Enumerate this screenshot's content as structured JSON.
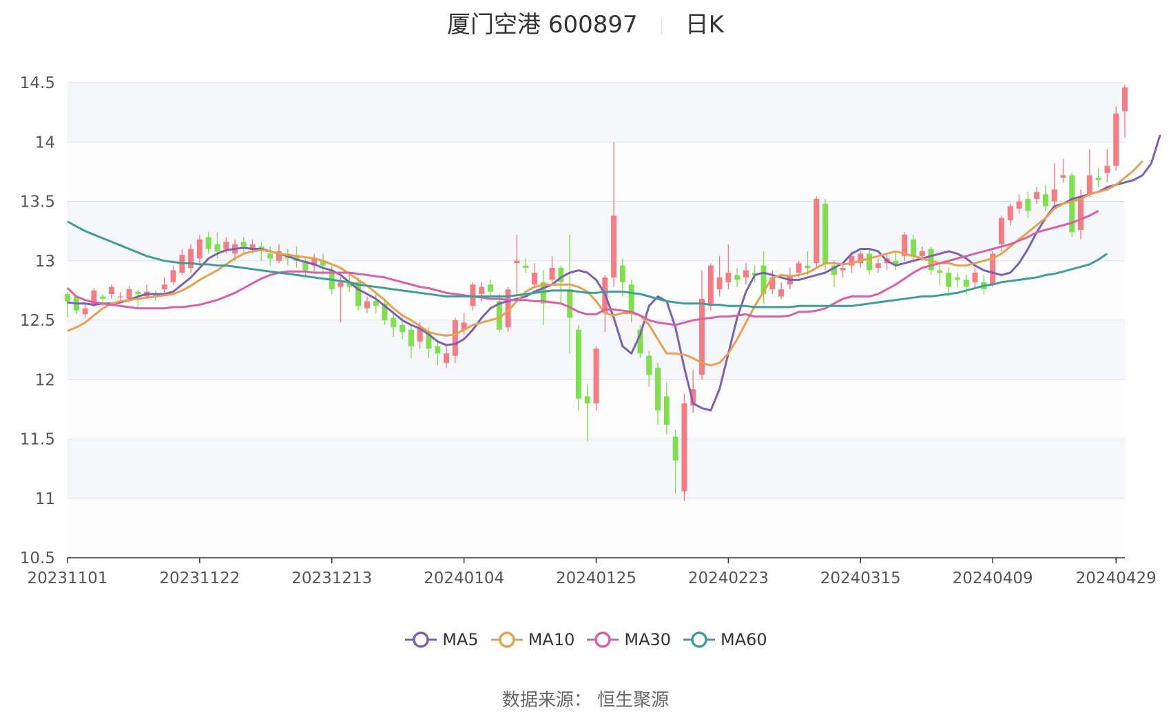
{
  "title": {
    "name": "厦门空港 600897",
    "period": "日K"
  },
  "source": "数据来源： 恒生聚源",
  "colors": {
    "up": "#f47c82",
    "down": "#7ee04c",
    "plot_bg": "#f6f7fb",
    "grid": "#dde1ee",
    "axis": "#333333"
  },
  "chart_data": {
    "type": "candlestick",
    "yticks": [
      "14.5",
      "14",
      "13.5",
      "13",
      "12.5",
      "12",
      "11.5",
      "11",
      "10.5"
    ],
    "ylim": [
      10.5,
      14.5
    ],
    "xtick_labels": [
      "20231101",
      "20231122",
      "20231213",
      "20240104",
      "20240125",
      "20240223",
      "20240315",
      "20240409",
      "20240429"
    ],
    "xtick_index": [
      0,
      15,
      30,
      45,
      60,
      75,
      90,
      105,
      119
    ],
    "candles": [
      [
        12.72,
        12.66,
        12.74,
        12.52
      ],
      [
        12.7,
        12.58,
        12.71,
        12.55
      ],
      [
        12.55,
        12.6,
        12.65,
        12.52
      ],
      [
        12.62,
        12.75,
        12.77,
        12.61
      ],
      [
        12.7,
        12.68,
        12.72,
        12.62
      ],
      [
        12.72,
        12.78,
        12.8,
        12.68
      ],
      [
        12.7,
        12.7,
        12.74,
        12.66
      ],
      [
        12.68,
        12.76,
        12.79,
        12.65
      ],
      [
        12.74,
        12.72,
        12.76,
        12.6
      ],
      [
        12.7,
        12.74,
        12.8,
        12.68
      ],
      [
        12.72,
        12.7,
        12.75,
        12.66
      ],
      [
        12.76,
        12.8,
        12.86,
        12.72
      ],
      [
        12.82,
        12.92,
        12.96,
        12.8
      ],
      [
        12.9,
        13.05,
        13.1,
        12.88
      ],
      [
        12.94,
        13.1,
        13.14,
        12.9
      ],
      [
        13.02,
        13.18,
        13.22,
        12.98
      ],
      [
        13.2,
        13.1,
        13.24,
        13.06
      ],
      [
        13.14,
        13.08,
        13.24,
        13.02
      ],
      [
        13.1,
        13.16,
        13.2,
        13.06
      ],
      [
        13.06,
        13.14,
        13.18,
        13.0
      ],
      [
        13.16,
        13.12,
        13.2,
        13.06
      ],
      [
        13.1,
        13.14,
        13.18,
        13.06
      ],
      [
        13.12,
        13.08,
        13.16,
        13.0
      ],
      [
        13.06,
        13.02,
        13.12,
        12.96
      ],
      [
        13.0,
        13.08,
        13.14,
        12.98
      ],
      [
        13.06,
        13.02,
        13.1,
        12.96
      ],
      [
        13.04,
        13.0,
        13.12,
        12.94
      ],
      [
        13.0,
        12.92,
        13.04,
        12.86
      ],
      [
        12.96,
        13.02,
        13.06,
        12.9
      ],
      [
        13.0,
        12.96,
        13.06,
        12.88
      ],
      [
        12.92,
        12.76,
        12.96,
        12.72
      ],
      [
        12.78,
        12.82,
        12.86,
        12.48
      ],
      [
        12.82,
        12.78,
        12.9,
        12.74
      ],
      [
        12.82,
        12.62,
        12.86,
        12.58
      ],
      [
        12.6,
        12.66,
        12.7,
        12.56
      ],
      [
        12.66,
        12.62,
        12.72,
        12.56
      ],
      [
        12.64,
        12.5,
        12.68,
        12.46
      ],
      [
        12.52,
        12.44,
        12.58,
        12.36
      ],
      [
        12.46,
        12.4,
        12.52,
        12.34
      ],
      [
        12.42,
        12.28,
        12.46,
        12.18
      ],
      [
        12.32,
        12.44,
        12.48,
        12.26
      ],
      [
        12.4,
        12.26,
        12.44,
        12.18
      ],
      [
        12.28,
        12.22,
        12.32,
        12.12
      ],
      [
        12.14,
        12.22,
        12.28,
        12.1
      ],
      [
        12.2,
        12.5,
        12.52,
        12.14
      ],
      [
        12.42,
        12.48,
        12.56,
        12.38
      ],
      [
        12.62,
        12.8,
        12.82,
        12.58
      ],
      [
        12.72,
        12.78,
        12.82,
        12.66
      ],
      [
        12.8,
        12.74,
        12.84,
        12.7
      ],
      [
        12.66,
        12.42,
        12.72,
        12.4
      ],
      [
        12.44,
        12.76,
        12.78,
        12.4
      ],
      [
        12.98,
        13.0,
        13.22,
        12.7
      ],
      [
        12.96,
        12.94,
        13.02,
        12.9
      ],
      [
        12.8,
        12.9,
        12.98,
        12.78
      ],
      [
        12.82,
        12.64,
        12.92,
        12.46
      ],
      [
        12.84,
        12.94,
        13.04,
        12.8
      ],
      [
        12.94,
        12.82,
        12.96,
        12.64
      ],
      [
        12.76,
        12.52,
        13.22,
        12.22
      ],
      [
        12.42,
        11.84,
        12.46,
        11.74
      ],
      [
        11.86,
        11.8,
        11.96,
        11.48
      ],
      [
        11.8,
        12.26,
        12.28,
        11.74
      ],
      [
        12.56,
        12.86,
        12.88,
        12.4
      ],
      [
        12.86,
        13.38,
        14.0,
        12.78
      ],
      [
        12.96,
        12.82,
        13.02,
        12.7
      ],
      [
        12.8,
        12.56,
        12.84,
        12.48
      ],
      [
        12.42,
        12.22,
        12.46,
        12.18
      ],
      [
        12.2,
        12.04,
        12.24,
        11.94
      ],
      [
        12.1,
        11.74,
        12.14,
        11.62
      ],
      [
        11.86,
        11.62,
        11.98,
        11.54
      ],
      [
        11.52,
        11.32,
        11.58,
        11.04
      ],
      [
        11.06,
        11.8,
        11.88,
        10.98
      ],
      [
        11.78,
        11.92,
        12.08,
        11.72
      ],
      [
        12.04,
        12.68,
        12.92,
        12.0
      ],
      [
        12.62,
        12.96,
        12.98,
        12.58
      ],
      [
        12.76,
        12.86,
        13.04,
        12.7
      ],
      [
        12.82,
        12.9,
        13.14,
        12.76
      ],
      [
        12.88,
        12.84,
        12.94,
        12.78
      ],
      [
        12.86,
        12.92,
        12.98,
        12.8
      ],
      [
        12.9,
        12.88,
        12.96,
        12.82
      ],
      [
        12.96,
        12.72,
        13.08,
        12.64
      ],
      [
        12.76,
        12.86,
        12.92,
        12.72
      ],
      [
        12.7,
        12.76,
        12.82,
        12.68
      ],
      [
        12.8,
        12.88,
        12.94,
        12.76
      ],
      [
        12.9,
        12.98,
        13.0,
        12.86
      ],
      [
        12.96,
        12.94,
        13.08,
        12.88
      ],
      [
        12.98,
        13.52,
        13.54,
        12.94
      ],
      [
        13.48,
        12.98,
        13.52,
        12.92
      ],
      [
        12.96,
        12.88,
        13.0,
        12.78
      ],
      [
        12.92,
        12.94,
        12.98,
        12.86
      ],
      [
        12.96,
        13.04,
        13.08,
        12.9
      ],
      [
        12.98,
        13.06,
        13.08,
        12.94
      ],
      [
        13.06,
        12.92,
        13.1,
        12.88
      ],
      [
        12.94,
        12.98,
        13.02,
        12.9
      ],
      [
        12.98,
        13.02,
        13.06,
        12.92
      ],
      [
        13.0,
        12.96,
        13.08,
        12.92
      ],
      [
        13.04,
        13.22,
        13.24,
        13.0
      ],
      [
        13.18,
        13.04,
        13.22,
        13.0
      ],
      [
        13.04,
        13.08,
        13.12,
        13.0
      ],
      [
        13.1,
        12.92,
        13.12,
        12.88
      ],
      [
        12.92,
        12.9,
        12.98,
        12.8
      ],
      [
        12.9,
        12.78,
        12.94,
        12.7
      ],
      [
        12.86,
        12.84,
        12.9,
        12.78
      ],
      [
        12.84,
        12.78,
        12.88,
        12.72
      ],
      [
        12.82,
        12.9,
        12.94,
        12.78
      ],
      [
        12.82,
        12.76,
        12.88,
        12.72
      ],
      [
        12.8,
        13.06,
        13.08,
        12.78
      ],
      [
        13.14,
        13.36,
        13.38,
        13.08
      ],
      [
        13.34,
        13.46,
        13.48,
        13.3
      ],
      [
        13.44,
        13.5,
        13.56,
        13.4
      ],
      [
        13.52,
        13.42,
        13.58,
        13.36
      ],
      [
        13.52,
        13.58,
        13.62,
        13.48
      ],
      [
        13.56,
        13.46,
        13.64,
        13.42
      ],
      [
        13.5,
        13.6,
        13.82,
        13.46
      ],
      [
        13.7,
        13.72,
        13.86,
        13.66
      ],
      [
        13.72,
        13.24,
        13.74,
        13.2
      ],
      [
        13.26,
        13.54,
        13.6,
        13.18
      ],
      [
        13.56,
        13.72,
        13.94,
        13.54
      ],
      [
        13.7,
        13.68,
        13.78,
        13.62
      ],
      [
        13.74,
        13.8,
        13.94,
        13.66
      ],
      [
        13.8,
        14.24,
        14.3,
        13.76
      ],
      [
        14.26,
        14.46,
        14.48,
        14.04
      ]
    ],
    "series": [
      {
        "name": "MA5",
        "color": "#7b60b5",
        "values": [
          12.65,
          12.64,
          12.64,
          12.63,
          12.64,
          12.64,
          12.65,
          12.67,
          12.7,
          12.72,
          12.72,
          12.72,
          12.74,
          12.8,
          12.86,
          12.94,
          13.02,
          13.06,
          13.09,
          13.1,
          13.11,
          13.1,
          13.1,
          13.08,
          13.06,
          13.04,
          13.01,
          12.99,
          12.97,
          12.94,
          12.92,
          12.88,
          12.82,
          12.76,
          12.72,
          12.68,
          12.62,
          12.56,
          12.5,
          12.46,
          12.43,
          12.38,
          12.32,
          12.29,
          12.3,
          12.34,
          12.42,
          12.52,
          12.6,
          12.64,
          12.66,
          12.68,
          12.7,
          12.74,
          12.77,
          12.8,
          12.86,
          12.9,
          12.92,
          12.9,
          12.84,
          12.72,
          12.52,
          12.28,
          12.22,
          12.38,
          12.62,
          12.7,
          12.66,
          12.44,
          12.1,
          11.8,
          11.76,
          11.74,
          11.92,
          12.22,
          12.52,
          12.74,
          12.88,
          12.9,
          12.88,
          12.86,
          12.84,
          12.84,
          12.86,
          12.88,
          12.9,
          12.94,
          12.98,
          13.06,
          13.1,
          13.1,
          13.08,
          13.0,
          12.96,
          12.98,
          13.0,
          13.02,
          13.04,
          13.06,
          13.08,
          13.06,
          13.02,
          12.96,
          12.92,
          12.9,
          12.88,
          12.9,
          12.98,
          13.1,
          13.24,
          13.36,
          13.46,
          13.48,
          13.52,
          13.54,
          13.56,
          13.58,
          13.62,
          13.64,
          13.66,
          13.68,
          13.72,
          13.82,
          14.06
        ]
      },
      {
        "name": "MA10",
        "color": "#e6a04e",
        "values": [
          12.41,
          12.44,
          12.48,
          12.54,
          12.6,
          12.64,
          12.66,
          12.67,
          12.68,
          12.69,
          12.7,
          12.71,
          12.72,
          12.75,
          12.79,
          12.84,
          12.88,
          12.92,
          12.97,
          13.02,
          13.06,
          13.08,
          13.09,
          13.08,
          13.06,
          13.05,
          13.04,
          13.03,
          13.02,
          13.0,
          12.97,
          12.94,
          12.89,
          12.84,
          12.79,
          12.73,
          12.67,
          12.6,
          12.54,
          12.5,
          12.45,
          12.4,
          12.38,
          12.37,
          12.38,
          12.42,
          12.46,
          12.48,
          12.5,
          12.52,
          12.58,
          12.66,
          12.74,
          12.78,
          12.8,
          12.8,
          12.8,
          12.8,
          12.78,
          12.74,
          12.66,
          12.56,
          12.54,
          12.56,
          12.56,
          12.54,
          12.46,
          12.34,
          12.22,
          12.22,
          12.21,
          12.18,
          12.14,
          12.12,
          12.14,
          12.22,
          12.34,
          12.48,
          12.62,
          12.74,
          12.86,
          12.88,
          12.87,
          12.88,
          12.9,
          12.94,
          12.98,
          12.98,
          12.97,
          12.98,
          13.0,
          13.02,
          13.04,
          13.06,
          13.08,
          13.06,
          13.04,
          13.02,
          13.0,
          12.98,
          12.98,
          12.96,
          12.96,
          12.98,
          13.0,
          13.02,
          13.06,
          13.12,
          13.18,
          13.24,
          13.3,
          13.36,
          13.44,
          13.48,
          13.5,
          13.52,
          13.56,
          13.58,
          13.6,
          13.64,
          13.7,
          13.76,
          13.84
        ]
      },
      {
        "name": "MA30",
        "color": "#d95fa6",
        "values": [
          12.77,
          12.7,
          12.67,
          12.65,
          12.64,
          12.63,
          12.62,
          12.61,
          12.6,
          12.6,
          12.6,
          12.6,
          12.61,
          12.61,
          12.62,
          12.63,
          12.65,
          12.67,
          12.7,
          12.73,
          12.77,
          12.81,
          12.85,
          12.88,
          12.9,
          12.91,
          12.91,
          12.91,
          12.9,
          12.9,
          12.9,
          12.9,
          12.9,
          12.89,
          12.88,
          12.87,
          12.86,
          12.84,
          12.82,
          12.8,
          12.78,
          12.77,
          12.75,
          12.73,
          12.72,
          12.71,
          12.7,
          12.69,
          12.68,
          12.68,
          12.67,
          12.67,
          12.67,
          12.66,
          12.66,
          12.65,
          12.64,
          12.61,
          12.57,
          12.55,
          12.55,
          12.59,
          12.59,
          12.58,
          12.57,
          12.54,
          12.5,
          12.48,
          12.47,
          12.46,
          12.48,
          12.5,
          12.51,
          12.52,
          12.53,
          12.53,
          12.54,
          12.55,
          12.53,
          12.53,
          12.53,
          12.53,
          12.54,
          12.57,
          12.57,
          12.58,
          12.6,
          12.64,
          12.68,
          12.7,
          12.7,
          12.7,
          12.72,
          12.76,
          12.8,
          12.85,
          12.9,
          12.94,
          12.96,
          12.98,
          13.0,
          13.02,
          13.04,
          13.06,
          13.08,
          13.1,
          13.12,
          13.14,
          13.17,
          13.2,
          13.24,
          13.26,
          13.28,
          13.3,
          13.32,
          13.35,
          13.38,
          13.42
        ]
      },
      {
        "name": "MA60",
        "color": "#3e9d98",
        "values": [
          13.33,
          13.29,
          13.25,
          13.22,
          13.19,
          13.16,
          13.13,
          13.1,
          13.07,
          13.04,
          13.02,
          13.0,
          12.99,
          12.98,
          12.98,
          12.97,
          12.97,
          12.96,
          12.96,
          12.95,
          12.94,
          12.93,
          12.92,
          12.91,
          12.9,
          12.89,
          12.88,
          12.87,
          12.86,
          12.85,
          12.84,
          12.83,
          12.82,
          12.8,
          12.79,
          12.78,
          12.77,
          12.76,
          12.75,
          12.74,
          12.73,
          12.72,
          12.71,
          12.7,
          12.7,
          12.7,
          12.7,
          12.7,
          12.7,
          12.7,
          12.7,
          12.71,
          12.72,
          12.73,
          12.74,
          12.75,
          12.75,
          12.75,
          12.74,
          12.73,
          12.73,
          12.74,
          12.74,
          12.74,
          12.73,
          12.72,
          12.7,
          12.68,
          12.66,
          12.65,
          12.64,
          12.64,
          12.64,
          12.63,
          12.63,
          12.62,
          12.62,
          12.62,
          12.61,
          12.61,
          12.61,
          12.61,
          12.61,
          12.62,
          12.62,
          12.62,
          12.62,
          12.62,
          12.62,
          12.62,
          12.63,
          12.64,
          12.65,
          12.66,
          12.67,
          12.68,
          12.69,
          12.7,
          12.7,
          12.71,
          12.72,
          12.73,
          12.75,
          12.77,
          12.79,
          12.8,
          12.82,
          12.83,
          12.84,
          12.85,
          12.86,
          12.88,
          12.89,
          12.91,
          12.93,
          12.95,
          12.97,
          13.01,
          13.06
        ]
      }
    ]
  }
}
